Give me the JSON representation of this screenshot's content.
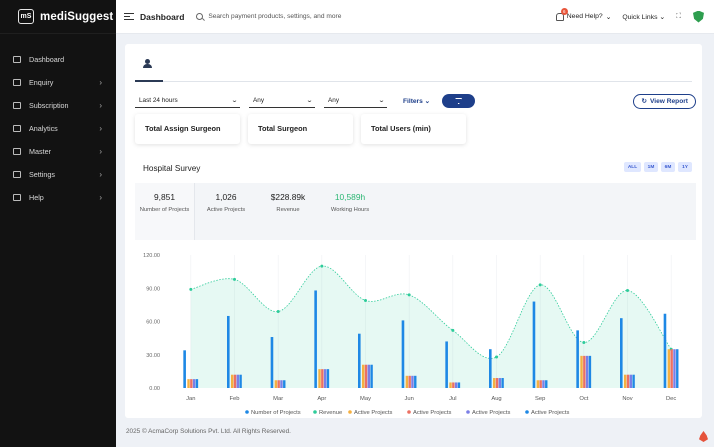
{
  "brand": {
    "logo": "mS",
    "name": "mediSuggest"
  },
  "sidebar": {
    "items": [
      {
        "label": "Dashboard",
        "icon": "dashboard-icon",
        "has_submenu": false
      },
      {
        "label": "Enquiry",
        "icon": "enquiry-icon",
        "has_submenu": true
      },
      {
        "label": "Subscription",
        "icon": "subscription-icon",
        "has_submenu": true
      },
      {
        "label": "Analytics",
        "icon": "analytics-icon",
        "has_submenu": true
      },
      {
        "label": "Master",
        "icon": "master-icon",
        "has_submenu": true
      },
      {
        "label": "Settings",
        "icon": "settings-icon",
        "has_submenu": true
      },
      {
        "label": "Help",
        "icon": "help-icon",
        "has_submenu": true
      }
    ]
  },
  "header": {
    "title": "Dashboard",
    "search_placeholder": "Search payment products, settings, and more",
    "help_label": "Need Help?",
    "help_badge": "6",
    "quick_links": "Quick Links"
  },
  "filters": {
    "period": "Last 24 hours",
    "select2": "Any",
    "select3": "Any",
    "filters_label": "Filters",
    "view_report": "View Report"
  },
  "stat_cards": [
    "Total Assign Surgeon",
    "Total Surgeon",
    "Total Users (min)"
  ],
  "survey": {
    "title": "Hospital Survey",
    "ranges": [
      "ALL",
      "1M",
      "6M",
      "1Y"
    ],
    "kpis": [
      {
        "value": "9,851",
        "label": "Number of Projects"
      },
      {
        "value": "1,026",
        "label": "Active Projects"
      },
      {
        "value": "$228.89k",
        "label": "Revenue"
      },
      {
        "value": "10,589h",
        "label": "Working Hours"
      }
    ]
  },
  "chart_data": {
    "type": "bar",
    "categories": [
      "Jan",
      "Feb",
      "Mar",
      "Apr",
      "May",
      "Jun",
      "Jul",
      "Aug",
      "Sep",
      "Oct",
      "Nov",
      "Dec"
    ],
    "ylim": [
      0,
      120
    ],
    "yticks": [
      "0.00",
      "30.00",
      "60.00",
      "90.00",
      "120.00"
    ],
    "series": [
      {
        "name": "Number of Projects",
        "kind": "bar",
        "color": "#1e88e5",
        "values": [
          34,
          65,
          46,
          88,
          49,
          61,
          42,
          35,
          78,
          52,
          63,
          67
        ]
      },
      {
        "name": "Revenue",
        "kind": "area",
        "color": "#2ecc9a",
        "values": [
          89,
          98,
          69,
          110,
          79,
          84,
          52,
          28,
          93,
          41,
          88,
          35
        ]
      },
      {
        "name": "Active Projects",
        "kind": "bar",
        "color": "#f5b041",
        "values": [
          8,
          12,
          7,
          17,
          21,
          11,
          5,
          9,
          7,
          29,
          12,
          35
        ]
      },
      {
        "name": "Active Projects",
        "kind": "bar",
        "color": "#ec7063",
        "values": [
          8,
          12,
          7,
          17,
          21,
          11,
          5,
          9,
          7,
          29,
          12,
          35
        ]
      },
      {
        "name": "Active Projects",
        "kind": "bar",
        "color": "#7b7fe6",
        "values": [
          8,
          12,
          7,
          17,
          21,
          11,
          5,
          9,
          7,
          29,
          12,
          35
        ]
      },
      {
        "name": "Active Projects",
        "kind": "bar",
        "color": "#1e88e5",
        "values": [
          8,
          12,
          7,
          17,
          21,
          11,
          5,
          9,
          7,
          29,
          12,
          35
        ]
      }
    ]
  },
  "footer": "2025 © AcmaCorp Solutions Pvt. Ltd. All Rights Reserved."
}
